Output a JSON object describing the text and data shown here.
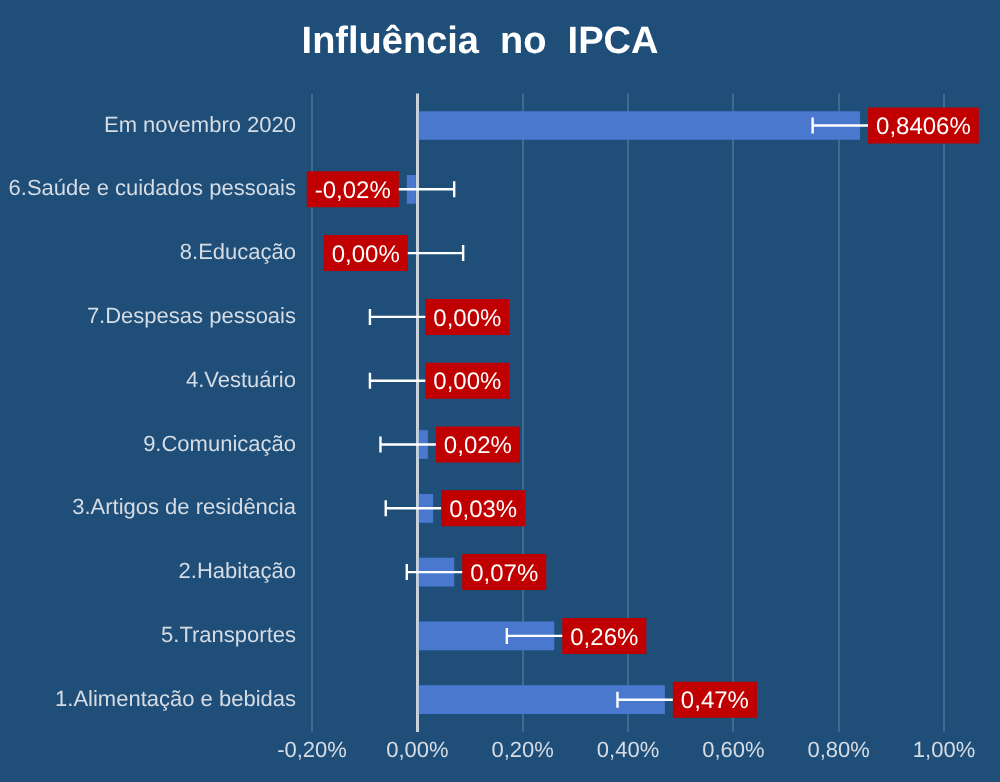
{
  "chart_data": {
    "type": "bar",
    "orientation": "horizontal",
    "title": "Influência  no  IPCA",
    "categories": [
      "Em novembro 2020",
      "6.Saúde e cuidados pessoais",
      "8.Educação",
      "7.Despesas pessoais",
      "4.Vestuário",
      "9.Comunicação",
      "3.Artigos de residência",
      "2.Habitação",
      "5.Transportes",
      "1.Alimentação e bebidas"
    ],
    "values": [
      0.8406,
      -0.02,
      -0.003,
      0,
      0,
      0.02,
      0.03,
      0.07,
      0.26,
      0.47
    ],
    "value_labels": [
      "0,8406%",
      "-0,02%",
      "0,00%",
      "0,00%",
      "0,00%",
      "0,02%",
      "0,03%",
      "0,07%",
      "0,26%",
      "0,47%"
    ],
    "errors": [
      0.09,
      0.09,
      0.09,
      0.09,
      0.09,
      0.09,
      0.09,
      0.09,
      0.09,
      0.09
    ],
    "color": "#4a78cf",
    "xlim": [
      -0.2,
      1.0
    ],
    "xticks": [
      {
        "value": -0.2,
        "label": "-0,20%"
      },
      {
        "value": 0,
        "label": "0,00%"
      },
      {
        "value": 0.2,
        "label": "0,20%"
      },
      {
        "value": 0.4,
        "label": "0,40%"
      },
      {
        "value": 0.6,
        "label": "0,60%"
      },
      {
        "value": 0.8,
        "label": "0,80%"
      },
      {
        "value": 1.0,
        "label": "1,00%"
      }
    ],
    "grid": "x",
    "legend": false
  }
}
